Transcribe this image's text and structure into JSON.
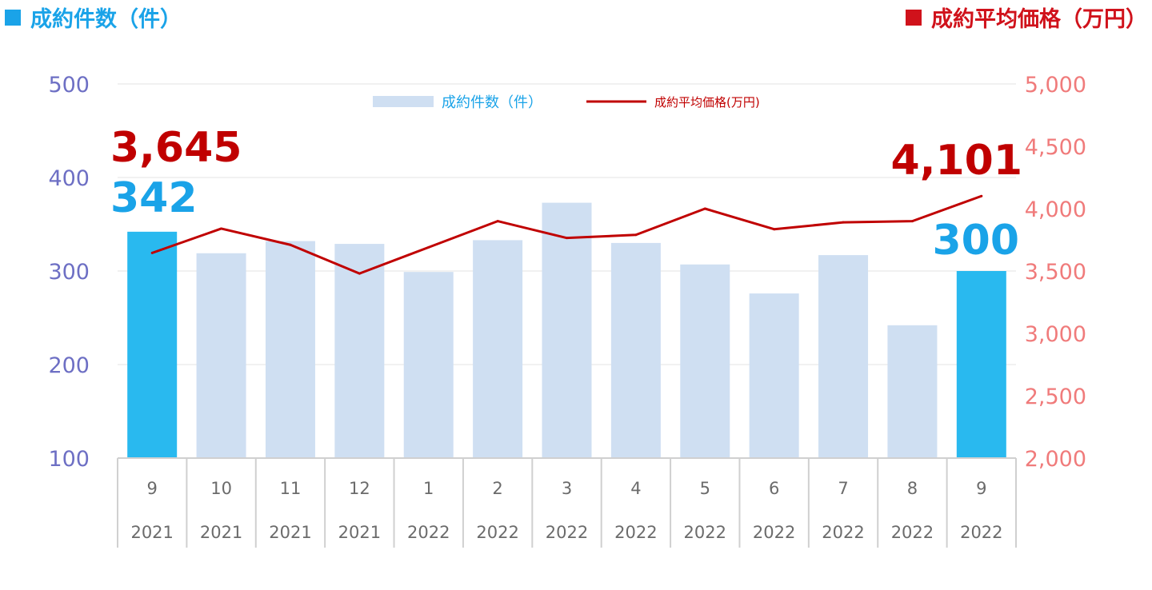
{
  "titles": {
    "left": "成約件数（件）",
    "right": "成約平均価格（万円）"
  },
  "colors": {
    "bar": "#cfdff2",
    "bar_highlight": "#29b9ef",
    "line": "#c00000",
    "left_axis": "#6d6fc4",
    "right_axis": "#f07b7b",
    "label_count": "#1aa3e8",
    "label_price": "#c00000"
  },
  "chart_data": {
    "type": "bar",
    "categories": [
      "9",
      "10",
      "11",
      "12",
      "1",
      "2",
      "3",
      "4",
      "5",
      "6",
      "7",
      "8",
      "9"
    ],
    "years": [
      "2021",
      "2021",
      "2021",
      "2021",
      "2022",
      "2022",
      "2022",
      "2022",
      "2022",
      "2022",
      "2022",
      "2022",
      "2022"
    ],
    "series": [
      {
        "name": "成約件数（件）",
        "type": "bar",
        "axis": "left",
        "values": [
          342,
          319,
          332,
          329,
          299,
          333,
          373,
          330,
          307,
          276,
          317,
          242,
          300
        ],
        "highlight": [
          true,
          false,
          false,
          false,
          false,
          false,
          false,
          false,
          false,
          false,
          false,
          false,
          true
        ]
      },
      {
        "name": "成約平均価格(万円)",
        "type": "line",
        "axis": "right",
        "values": [
          3645,
          3840,
          3710,
          3480,
          3690,
          3900,
          3765,
          3790,
          4000,
          3835,
          3890,
          3900,
          4101
        ]
      }
    ],
    "left_axis": {
      "min": 100,
      "max": 500,
      "ticks": [
        "100",
        "200",
        "300",
        "400",
        "500"
      ]
    },
    "right_axis": {
      "min": 2000,
      "max": 5000,
      "ticks": [
        "2,000",
        "2,500",
        "3,000",
        "3,500",
        "4,000",
        "4,500",
        "5,000"
      ]
    },
    "annotations": {
      "count_first": "342",
      "count_last": "300",
      "price_first": "3,645",
      "price_last": "4,101"
    },
    "legend_position": "top-center",
    "grid": true
  }
}
